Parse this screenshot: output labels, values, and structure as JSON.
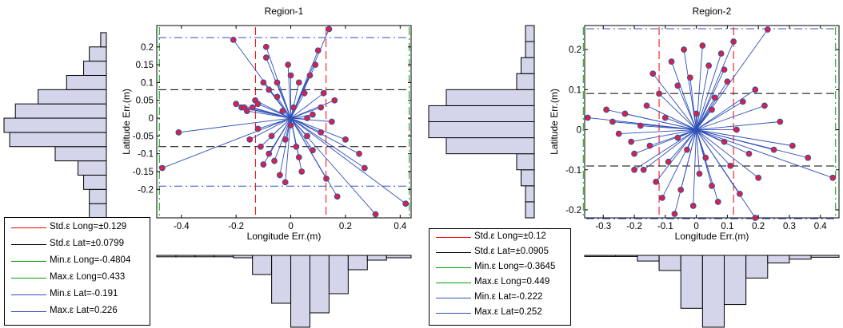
{
  "colors": {
    "hist_fill": "#d4d4ea",
    "vector": "#3050b8",
    "marker": "#e0203a",
    "std_long": "#ff0000",
    "std_lat": "#000000",
    "min_long": "#00a000",
    "max_long": "#00a000",
    "min_lat": "#3050b8",
    "max_lat": "#3050b8"
  },
  "chart_data": [
    {
      "type": "scatter",
      "title": "Region-1",
      "xlabel": "Longitude Err.(m)",
      "ylabel": "Latitude Err.(m)",
      "xlim": [
        -0.49,
        0.44
      ],
      "ylim": [
        -0.28,
        0.26
      ],
      "xticks": [
        "-0.4",
        "-0.2",
        "0",
        "0.2",
        "0.4"
      ],
      "xtick_values": [
        -0.4,
        -0.2,
        0,
        0.2,
        0.4
      ],
      "yticks": [
        "-0.2",
        "-0.15",
        "-0.1",
        "-0.05",
        "0",
        "0.05",
        "0.1",
        "0.15",
        "0.2"
      ],
      "ytick_values": [
        -0.2,
        -0.15,
        -0.1,
        -0.05,
        0,
        0.05,
        0.1,
        0.15,
        0.2
      ],
      "stats": {
        "std_long": 0.129,
        "std_lat": 0.0799,
        "min_long": -0.4804,
        "max_long": 0.433,
        "min_lat": -0.191,
        "max_lat": 0.226
      },
      "lat_hist": {
        "edges": [
          -0.28,
          -0.24,
          -0.2,
          -0.16,
          -0.12,
          -0.08,
          -0.04,
          0,
          0.04,
          0.08,
          0.12,
          0.16,
          0.2,
          0.24
        ],
        "counts": [
          3,
          3,
          4,
          5,
          9,
          17,
          18,
          16,
          12,
          7,
          4,
          3,
          1
        ]
      },
      "long_hist": {
        "edges": [
          -0.49,
          -0.42,
          -0.35,
          -0.28,
          -0.21,
          -0.14,
          -0.07,
          0,
          0.07,
          0.14,
          0.21,
          0.28,
          0.35,
          0.44
        ],
        "counts": [
          0.3,
          0.3,
          0.3,
          0.3,
          0.5,
          4,
          10,
          15,
          12,
          8,
          3,
          1,
          0.5
        ]
      },
      "points": [
        [
          -0.47,
          -0.14
        ],
        [
          -0.41,
          -0.04
        ],
        [
          -0.21,
          0.22
        ],
        [
          -0.2,
          0.04
        ],
        [
          -0.18,
          0.03
        ],
        [
          -0.17,
          0.03
        ],
        [
          -0.16,
          0.02
        ],
        [
          -0.14,
          0.03
        ],
        [
          -0.13,
          0.05
        ],
        [
          -0.12,
          0.04
        ],
        [
          -0.12,
          -0.03
        ],
        [
          -0.11,
          -0.08
        ],
        [
          -0.1,
          -0.13
        ],
        [
          -0.09,
          0.2
        ],
        [
          -0.09,
          0.17
        ],
        [
          -0.08,
          -0.1
        ],
        [
          -0.08,
          0.08
        ],
        [
          -0.07,
          -0.05
        ],
        [
          -0.06,
          -0.12
        ],
        [
          -0.05,
          0.1
        ],
        [
          -0.04,
          -0.16
        ],
        [
          -0.03,
          0.02
        ],
        [
          -0.02,
          -0.18
        ],
        [
          -0.01,
          0.15
        ],
        [
          0.0,
          -0.02
        ],
        [
          0.01,
          0.03
        ],
        [
          0.02,
          -0.08
        ],
        [
          0.03,
          0.1
        ],
        [
          0.04,
          -0.15
        ],
        [
          0.05,
          0.07
        ],
        [
          0.06,
          -0.05
        ],
        [
          0.07,
          0.12
        ],
        [
          0.08,
          0.01
        ],
        [
          0.09,
          0.15
        ],
        [
          0.1,
          0.19
        ],
        [
          0.11,
          -0.04
        ],
        [
          0.12,
          0.07
        ],
        [
          0.13,
          -0.17
        ],
        [
          0.14,
          0.25
        ],
        [
          0.15,
          -0.01
        ],
        [
          0.16,
          0.05
        ],
        [
          0.17,
          -0.22
        ],
        [
          0.2,
          -0.06
        ],
        [
          0.25,
          -0.1
        ],
        [
          0.27,
          -0.14
        ],
        [
          0.31,
          -0.27
        ],
        [
          0.42,
          -0.24
        ],
        [
          -0.15,
          -0.06
        ],
        [
          -0.05,
          0.06
        ],
        [
          0.0,
          0.12
        ],
        [
          0.03,
          -0.11
        ],
        [
          0.06,
          0.0
        ],
        [
          -0.1,
          0.1
        ],
        [
          0.08,
          -0.09
        ],
        [
          0.11,
          0.03
        ],
        [
          -0.02,
          -0.06
        ]
      ]
    },
    {
      "type": "scatter",
      "title": "Region-2",
      "xlabel": "Longitude Err.(m)",
      "ylabel": "Latitude Err.(m)",
      "xlim": [
        -0.36,
        0.46
      ],
      "ylim": [
        -0.22,
        0.26
      ],
      "xticks": [
        "-0.3",
        "-0.2",
        "-0.1",
        "0",
        "0.1",
        "0.2",
        "0.3",
        "0.4"
      ],
      "xtick_values": [
        -0.3,
        -0.2,
        -0.1,
        0,
        0.1,
        0.2,
        0.3,
        0.4
      ],
      "yticks": [
        "-0.2",
        "-0.1",
        "0",
        "0.1",
        "0.2"
      ],
      "ytick_values": [
        -0.2,
        -0.1,
        0,
        0.1,
        0.2
      ],
      "stats": {
        "std_long": 0.12,
        "std_lat": 0.0905,
        "min_long": -0.3645,
        "max_long": 0.449,
        "min_lat": -0.222,
        "max_lat": 0.252
      },
      "lat_hist": {
        "edges": [
          -0.22,
          -0.18,
          -0.14,
          -0.1,
          -0.06,
          -0.02,
          0.02,
          0.06,
          0.1,
          0.14,
          0.18,
          0.22,
          0.26
        ],
        "counts": [
          1,
          1,
          1.5,
          2,
          10,
          12,
          12,
          10,
          2,
          1.5,
          1,
          1
        ]
      },
      "long_hist": {
        "edges": [
          -0.36,
          -0.26,
          -0.19,
          -0.12,
          -0.05,
          0.02,
          0.09,
          0.16,
          0.23,
          0.3,
          0.37,
          0.46
        ],
        "counts": [
          0.3,
          0.3,
          1.5,
          4,
          14,
          19,
          13,
          6,
          2,
          1,
          0.5
        ]
      },
      "points": [
        [
          -0.35,
          0.03
        ],
        [
          -0.29,
          0.05
        ],
        [
          -0.27,
          0.02
        ],
        [
          -0.25,
          -0.01
        ],
        [
          -0.23,
          0.04
        ],
        [
          -0.21,
          -0.03
        ],
        [
          -0.2,
          -0.06
        ],
        [
          -0.18,
          0.01
        ],
        [
          -0.17,
          -0.1
        ],
        [
          -0.16,
          0.06
        ],
        [
          -0.15,
          -0.04
        ],
        [
          -0.14,
          0.14
        ],
        [
          -0.13,
          -0.13
        ],
        [
          -0.12,
          0.09
        ],
        [
          -0.11,
          -0.17
        ],
        [
          -0.1,
          0.03
        ],
        [
          -0.09,
          -0.08
        ],
        [
          -0.08,
          0.17
        ],
        [
          -0.07,
          -0.21
        ],
        [
          -0.06,
          0.11
        ],
        [
          -0.05,
          -0.15
        ],
        [
          -0.04,
          0.2
        ],
        [
          -0.03,
          -0.05
        ],
        [
          -0.02,
          0.13
        ],
        [
          -0.01,
          -0.19
        ],
        [
          0.0,
          0.04
        ],
        [
          0.01,
          -0.11
        ],
        [
          0.02,
          0.21
        ],
        [
          0.03,
          -0.07
        ],
        [
          0.04,
          0.16
        ],
        [
          0.05,
          -0.14
        ],
        [
          0.06,
          0.08
        ],
        [
          0.07,
          -0.18
        ],
        [
          0.08,
          0.19
        ],
        [
          0.09,
          -0.03
        ],
        [
          0.1,
          0.12
        ],
        [
          0.11,
          -0.09
        ],
        [
          0.12,
          0.22
        ],
        [
          0.13,
          0.0
        ],
        [
          0.14,
          -0.16
        ],
        [
          0.15,
          0.07
        ],
        [
          0.17,
          -0.06
        ],
        [
          0.19,
          0.1
        ],
        [
          0.2,
          -0.12
        ],
        [
          0.22,
          0.06
        ],
        [
          0.23,
          0.25
        ],
        [
          0.25,
          -0.05
        ],
        [
          0.27,
          0.02
        ],
        [
          0.31,
          -0.04
        ],
        [
          0.36,
          -0.07
        ],
        [
          0.44,
          -0.12
        ],
        [
          0.19,
          -0.22
        ],
        [
          -0.2,
          -0.1
        ],
        [
          0.05,
          0.05
        ],
        [
          -0.06,
          -0.02
        ],
        [
          0.09,
          0.15
        ]
      ]
    }
  ],
  "legends": [
    {
      "entries": [
        {
          "label": "Std.ε Long=±0.129",
          "color_key": "std_long"
        },
        {
          "label": "Std.ε Lat=±0.0799",
          "color_key": "std_lat"
        },
        {
          "label": "Min.ε Long=-0.4804",
          "color_key": "min_long"
        },
        {
          "label": "Max.ε Long=0.433",
          "color_key": "max_long"
        },
        {
          "label": "Min.ε Lat=-0.191",
          "color_key": "min_lat"
        },
        {
          "label": "Max.ε Lat=0.226",
          "color_key": "max_lat"
        }
      ]
    },
    {
      "entries": [
        {
          "label": "Std.ε Long=±0.12",
          "color_key": "std_long"
        },
        {
          "label": "Std.ε Lat=±0.0905",
          "color_key": "std_lat"
        },
        {
          "label": "Min.ε Long=-0.3645",
          "color_key": "min_long"
        },
        {
          "label": "Max.ε Long=0.449",
          "color_key": "max_long"
        },
        {
          "label": "Min.ε Lat=-0.222",
          "color_key": "min_lat"
        },
        {
          "label": "Max.ε Lat=0.252",
          "color_key": "max_lat"
        }
      ]
    }
  ]
}
